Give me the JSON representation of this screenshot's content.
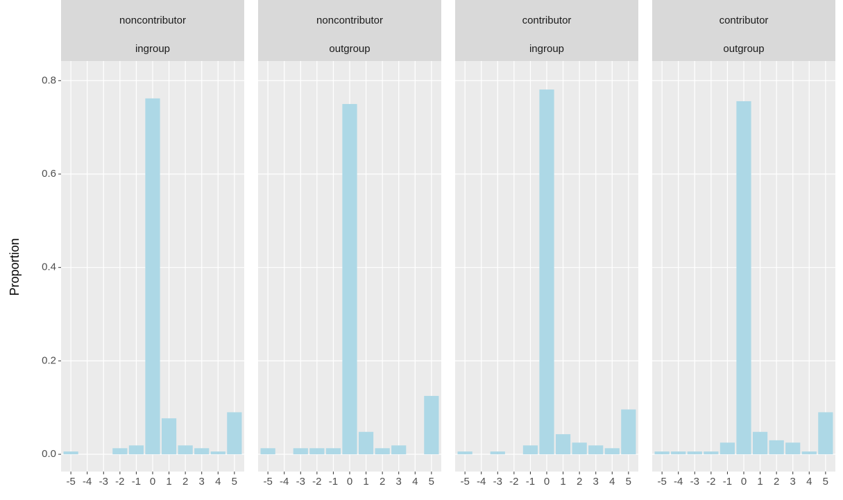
{
  "chart_data": [
    {
      "type": "bar",
      "title": "noncontributor",
      "subtitle": "ingroup",
      "ylabel": "Proportion",
      "categories": [
        "-5",
        "-4",
        "-3",
        "-2",
        "-1",
        "0",
        "1",
        "2",
        "3",
        "4",
        "5"
      ],
      "values": [
        0.006,
        0,
        0,
        0.013,
        0.019,
        0.762,
        0.077,
        0.019,
        0.013,
        0.006,
        0.09
      ],
      "color": "#add8e6",
      "ylim": [
        -0.037,
        0.842
      ],
      "yticks": [
        {
          "value": 0,
          "label": "0.0"
        },
        0.2,
        0.4,
        0.6,
        0.8
      ],
      "grid": true
    },
    {
      "type": "bar",
      "title": "noncontributor",
      "subtitle": "outgroup",
      "categories": [
        "-5",
        "-4",
        "-3",
        "-2",
        "-1",
        "0",
        "1",
        "2",
        "3",
        "4",
        "5"
      ],
      "values": [
        0.013,
        0,
        0.013,
        0.013,
        0.013,
        0.75,
        0.048,
        0.013,
        0.019,
        0,
        0.125
      ],
      "color": "#add8e6",
      "ylim": [
        -0.037,
        0.842
      ],
      "yticks": [
        {
          "value": 0,
          "label": "0.0"
        },
        0.2,
        0.4,
        0.6,
        0.8
      ],
      "grid": true
    },
    {
      "type": "bar",
      "title": "contributor",
      "subtitle": "ingroup",
      "categories": [
        "-5",
        "-4",
        "-3",
        "-2",
        "-1",
        "0",
        "1",
        "2",
        "3",
        "4",
        "5"
      ],
      "values": [
        0.006,
        0,
        0.006,
        0,
        0.019,
        0.781,
        0.043,
        0.025,
        0.019,
        0.013,
        0.096
      ],
      "color": "#add8e6",
      "ylim": [
        -0.037,
        0.842
      ],
      "yticks": [
        {
          "value": 0,
          "label": "0.0"
        },
        0.2,
        0.4,
        0.6,
        0.8
      ],
      "grid": true
    },
    {
      "type": "bar",
      "title": "contributor",
      "subtitle": "outgroup",
      "categories": [
        "-5",
        "-4",
        "-3",
        "-2",
        "-1",
        "0",
        "1",
        "2",
        "3",
        "4",
        "5"
      ],
      "values": [
        0.006,
        0.006,
        0.006,
        0.006,
        0.025,
        0.756,
        0.048,
        0.03,
        0.025,
        0.006,
        0.09
      ],
      "color": "#add8e6",
      "ylim": [
        -0.037,
        0.842
      ],
      "yticks": [
        {
          "value": 0,
          "label": "0.0"
        },
        0.2,
        0.4,
        0.6,
        0.8
      ],
      "grid": true
    }
  ]
}
